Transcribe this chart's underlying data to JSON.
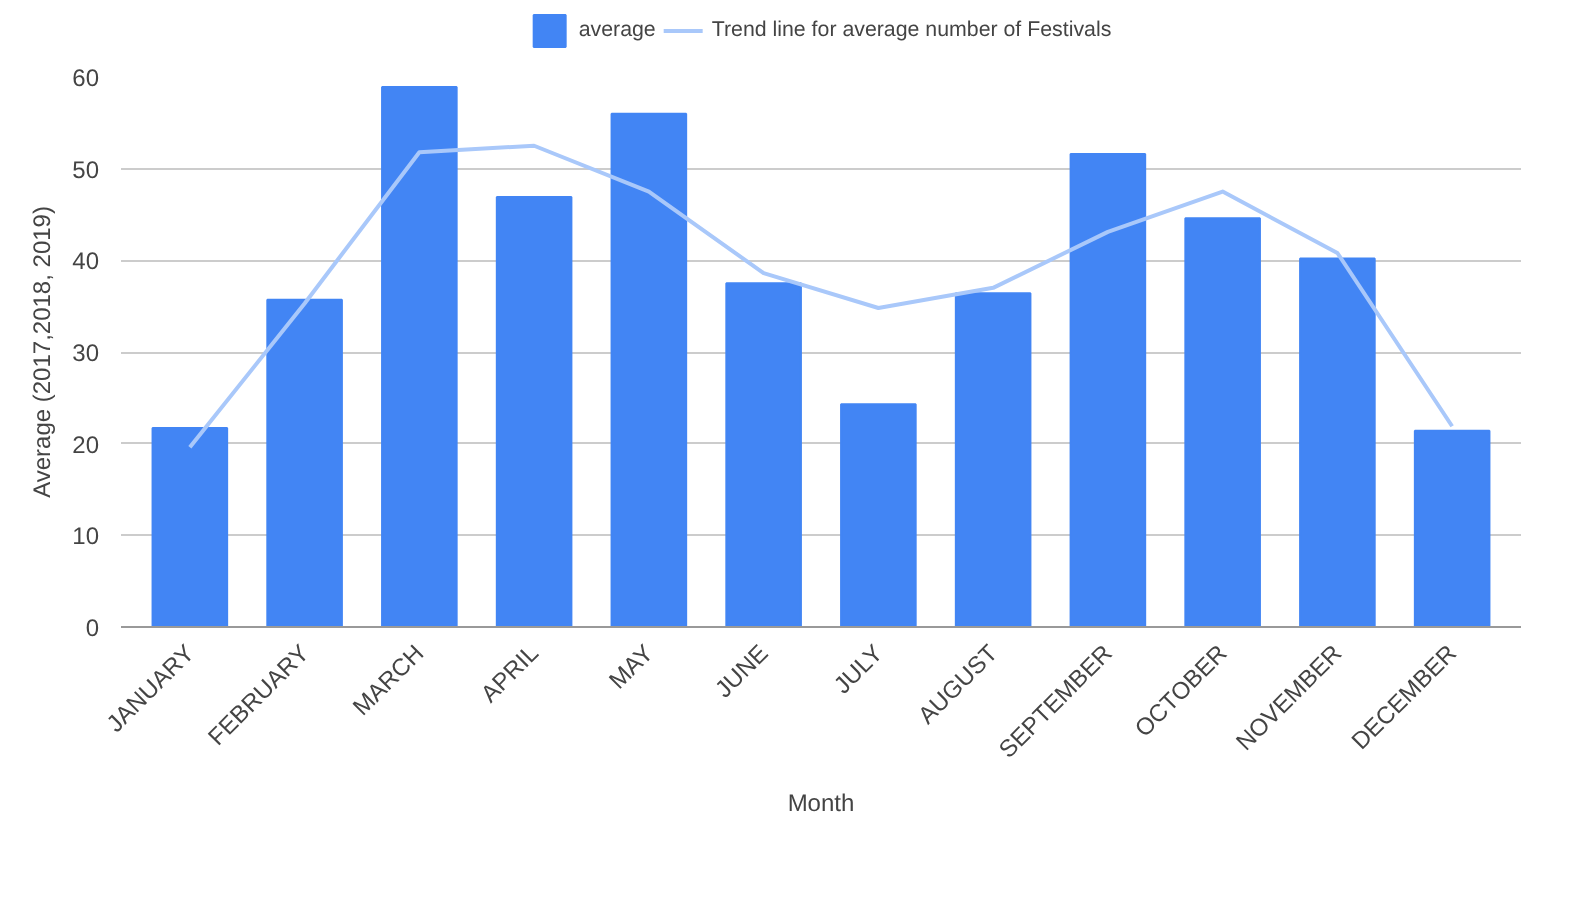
{
  "chart_data": {
    "type": "bar",
    "xlabel": "Month",
    "ylabel": "Average (2017,2018, 2019)",
    "categories": [
      "JANUARY",
      "FEBRUARY",
      "MARCH",
      "APRIL",
      "MAY",
      "JUNE",
      "JULY",
      "AUGUST",
      "SEPTEMBER",
      "OCTOBER",
      "NOVEMBER",
      "DECEMBER"
    ],
    "series": [
      {
        "name": "average",
        "color": "#4285f4",
        "values": [
          21.7,
          35.7,
          58.9,
          46.9,
          56.0,
          37.5,
          24.3,
          36.4,
          51.6,
          44.6,
          40.2,
          21.4
        ]
      },
      {
        "name": "Trend line for average number of Festivals",
        "type": "line",
        "color": "#a9c8fa",
        "values": [
          19.6,
          35.3,
          51.8,
          52.5,
          47.5,
          38.6,
          34.8,
          37,
          43.1,
          47.5,
          40.8,
          21.9
        ]
      }
    ],
    "ylim": [
      0,
      60
    ],
    "yticks": [
      0,
      10,
      20,
      30,
      40,
      50,
      60
    ],
    "grid": "y",
    "legend": "top"
  }
}
